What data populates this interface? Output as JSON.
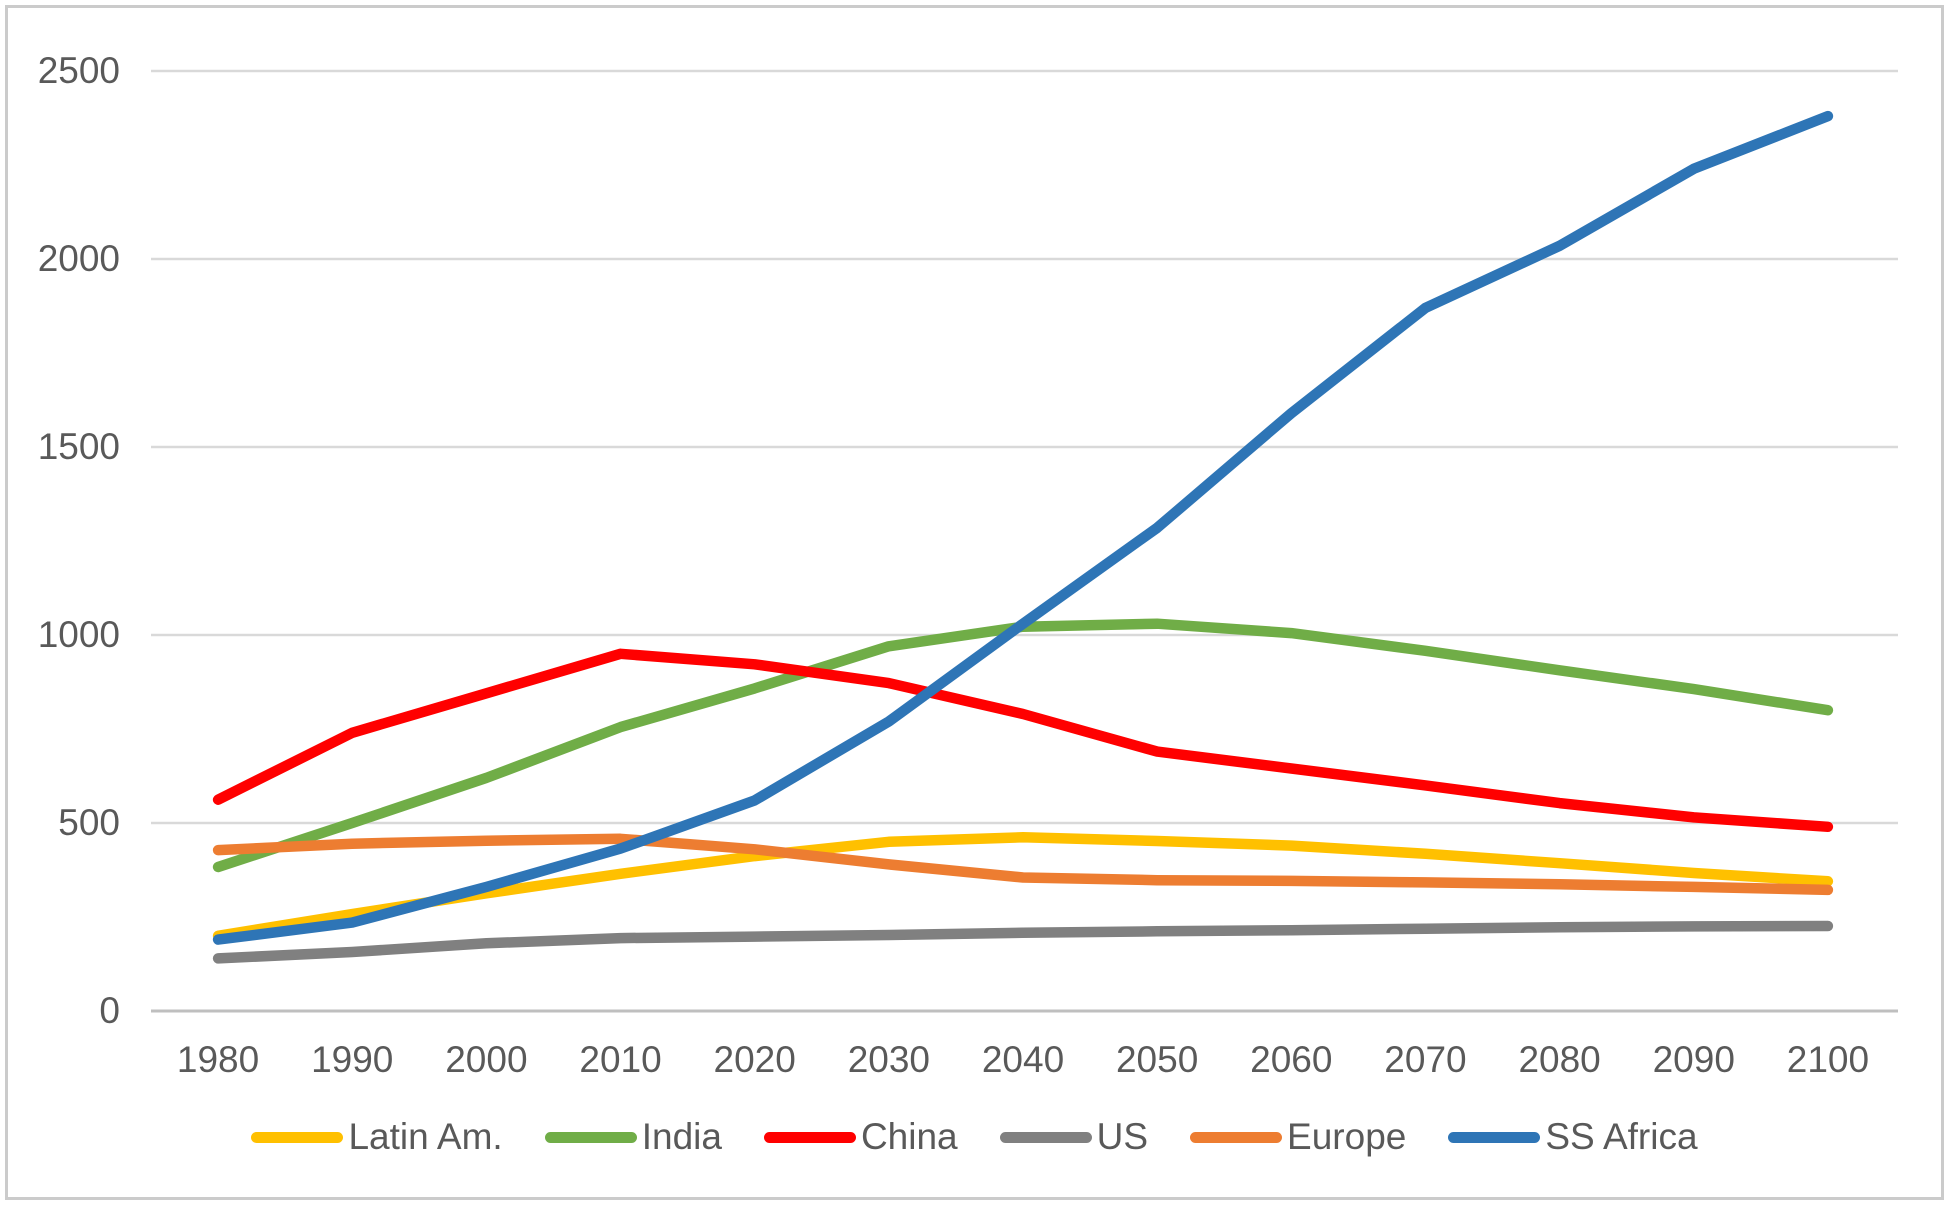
{
  "chart_data": {
    "type": "line",
    "title": "",
    "xlabel": "",
    "ylabel": "",
    "categories": [
      "1980",
      "1990",
      "2000",
      "2010",
      "2020",
      "2030",
      "2040",
      "2050",
      "2060",
      "2070",
      "2080",
      "2090",
      "2100"
    ],
    "yticks": [
      "0",
      "500",
      "1000",
      "1500",
      "2000",
      "2500"
    ],
    "ylim": [
      0,
      2500
    ],
    "grid": "horizontal",
    "legend_position": "bottom",
    "series": [
      {
        "name": "Latin Am.",
        "color": "#FFC000",
        "values": [
          200,
          258,
          313,
          365,
          412,
          450,
          462,
          452,
          440,
          418,
          393,
          367,
          345
        ]
      },
      {
        "name": "India",
        "color": "#70AD47",
        "values": [
          383,
          500,
          620,
          755,
          858,
          970,
          1022,
          1030,
          1005,
          958,
          906,
          856,
          800
        ]
      },
      {
        "name": "China",
        "color": "#FF0000",
        "values": [
          562,
          740,
          845,
          950,
          922,
          872,
          790,
          690,
          645,
          600,
          553,
          515,
          490
        ]
      },
      {
        "name": "US",
        "color": "#808080",
        "values": [
          140,
          157,
          180,
          194,
          198,
          202,
          208,
          212,
          215,
          219,
          223,
          225,
          226
        ]
      },
      {
        "name": "Europe",
        "color": "#ED7D31",
        "values": [
          428,
          445,
          453,
          458,
          430,
          390,
          355,
          348,
          346,
          342,
          337,
          330,
          322
        ]
      },
      {
        "name": "SS Africa",
        "color": "#2E75B6",
        "values": [
          190,
          235,
          330,
          432,
          560,
          770,
          1030,
          1285,
          1590,
          1870,
          2035,
          2240,
          2380
        ]
      }
    ]
  },
  "style_colors": {
    "gridline": "#D9D9D9",
    "axis_line": "#BFBFBF",
    "tick_text": "#595959",
    "background": "#FFFFFF"
  }
}
